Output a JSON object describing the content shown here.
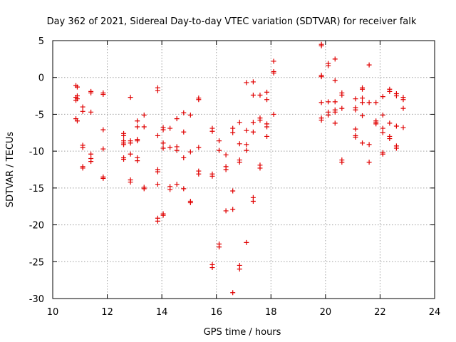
{
  "chart_data": {
    "type": "scatter",
    "title": "Day 362 of 2021, Sidereal Day-to-day VTEC variation (SDTVAR) for receiver falk",
    "xlabel": "GPS time / hours",
    "ylabel": "SDTVAR / TECUs",
    "xlim": [
      10,
      24
    ],
    "ylim": [
      -30,
      5
    ],
    "xticks": [
      10,
      12,
      14,
      16,
      18,
      20,
      22,
      24
    ],
    "yticks": [
      -30,
      -25,
      -20,
      -15,
      -10,
      -5,
      0,
      5
    ],
    "grid": true,
    "marker": "plus",
    "color": "#e00000",
    "series": [
      {
        "name": "SDTVAR",
        "points": [
          [
            10.85,
            -1.1
          ],
          [
            10.9,
            -1.3
          ],
          [
            10.85,
            -2.7
          ],
          [
            10.9,
            -2.9
          ],
          [
            10.85,
            -3.1
          ],
          [
            10.9,
            -2.5
          ],
          [
            10.85,
            -5.6
          ],
          [
            10.9,
            -5.9
          ],
          [
            11.1,
            -4.0
          ],
          [
            11.1,
            -4.6
          ],
          [
            11.1,
            -9.2
          ],
          [
            11.1,
            -9.5
          ],
          [
            11.1,
            -12.1
          ],
          [
            11.1,
            -12.3
          ],
          [
            11.4,
            -1.9
          ],
          [
            11.4,
            -2.1
          ],
          [
            11.4,
            -4.7
          ],
          [
            11.4,
            -10.4
          ],
          [
            11.4,
            -11.0
          ],
          [
            11.4,
            -11.4
          ],
          [
            11.85,
            -2.1
          ],
          [
            11.85,
            -2.3
          ],
          [
            11.85,
            -7.1
          ],
          [
            11.85,
            -9.7
          ],
          [
            11.85,
            -13.5
          ],
          [
            11.85,
            -13.7
          ],
          [
            12.6,
            -7.6
          ],
          [
            12.6,
            -7.9
          ],
          [
            12.6,
            -8.6
          ],
          [
            12.6,
            -8.9
          ],
          [
            12.6,
            -9.1
          ],
          [
            12.6,
            -10.9
          ],
          [
            12.6,
            -11.1
          ],
          [
            12.85,
            -2.7
          ],
          [
            12.85,
            -8.6
          ],
          [
            12.85,
            -8.9
          ],
          [
            12.85,
            -10.4
          ],
          [
            12.85,
            -13.9
          ],
          [
            12.85,
            -14.2
          ],
          [
            13.1,
            -5.9
          ],
          [
            13.1,
            -6.7
          ],
          [
            13.1,
            -8.4
          ],
          [
            13.1,
            -8.6
          ],
          [
            13.1,
            -10.9
          ],
          [
            13.1,
            -11.3
          ],
          [
            13.35,
            -5.1
          ],
          [
            13.35,
            -6.7
          ],
          [
            13.35,
            -14.9
          ],
          [
            13.35,
            -15.1
          ],
          [
            13.85,
            -1.4
          ],
          [
            13.85,
            -1.8
          ],
          [
            13.85,
            -7.9
          ],
          [
            13.85,
            -12.5
          ],
          [
            13.85,
            -12.8
          ],
          [
            13.85,
            -14.5
          ],
          [
            13.85,
            -19.1
          ],
          [
            13.85,
            -19.5
          ],
          [
            14.05,
            -6.8
          ],
          [
            14.05,
            -7.1
          ],
          [
            14.05,
            -8.9
          ],
          [
            14.05,
            -9.6
          ],
          [
            14.05,
            -18.5
          ],
          [
            14.05,
            -18.7
          ],
          [
            14.3,
            -6.9
          ],
          [
            14.3,
            -9.5
          ],
          [
            14.3,
            -14.8
          ],
          [
            14.3,
            -15.2
          ],
          [
            14.55,
            -5.6
          ],
          [
            14.55,
            -9.4
          ],
          [
            14.55,
            -9.9
          ],
          [
            14.55,
            -14.5
          ],
          [
            14.8,
            -4.8
          ],
          [
            14.8,
            -7.4
          ],
          [
            14.8,
            -10.9
          ],
          [
            14.8,
            -15.1
          ],
          [
            15.05,
            -5.1
          ],
          [
            15.05,
            -10.1
          ],
          [
            15.05,
            -16.8
          ],
          [
            15.05,
            -17.0
          ],
          [
            15.35,
            -2.8
          ],
          [
            15.35,
            -3.0
          ],
          [
            15.35,
            -9.5
          ],
          [
            15.35,
            -12.7
          ],
          [
            15.35,
            -13.1
          ],
          [
            15.85,
            -6.9
          ],
          [
            15.85,
            -7.3
          ],
          [
            15.85,
            -13.1
          ],
          [
            15.85,
            -13.4
          ],
          [
            15.85,
            -25.4
          ],
          [
            15.85,
            -25.8
          ],
          [
            16.1,
            -8.6
          ],
          [
            16.1,
            -9.9
          ],
          [
            16.1,
            -22.6
          ],
          [
            16.1,
            -23.0
          ],
          [
            16.35,
            -10.5
          ],
          [
            16.35,
            -12.1
          ],
          [
            16.35,
            -12.5
          ],
          [
            16.35,
            -18.1
          ],
          [
            16.6,
            -6.9
          ],
          [
            16.6,
            -7.5
          ],
          [
            16.6,
            -15.4
          ],
          [
            16.6,
            -17.9
          ],
          [
            16.6,
            -29.2
          ],
          [
            16.85,
            -6.1
          ],
          [
            16.85,
            -9.0
          ],
          [
            16.85,
            -11.2
          ],
          [
            16.85,
            -11.5
          ],
          [
            16.85,
            -25.5
          ],
          [
            16.85,
            -26.0
          ],
          [
            17.1,
            -0.7
          ],
          [
            17.1,
            -7.2
          ],
          [
            17.1,
            -9.1
          ],
          [
            17.1,
            -9.9
          ],
          [
            17.1,
            -22.4
          ],
          [
            17.35,
            -0.6
          ],
          [
            17.35,
            -2.4
          ],
          [
            17.35,
            -6.1
          ],
          [
            17.35,
            -7.4
          ],
          [
            17.35,
            -16.3
          ],
          [
            17.35,
            -16.8
          ],
          [
            17.6,
            -2.4
          ],
          [
            17.6,
            -5.5
          ],
          [
            17.6,
            -5.8
          ],
          [
            17.6,
            -11.9
          ],
          [
            17.6,
            -12.3
          ],
          [
            17.85,
            -2.0
          ],
          [
            17.85,
            -3.0
          ],
          [
            17.85,
            -6.3
          ],
          [
            17.85,
            -6.7
          ],
          [
            17.85,
            -8.0
          ],
          [
            18.1,
            2.2
          ],
          [
            18.1,
            0.8
          ],
          [
            18.1,
            0.6
          ],
          [
            18.1,
            -5.0
          ],
          [
            19.85,
            4.5
          ],
          [
            19.85,
            4.3
          ],
          [
            19.85,
            0.3
          ],
          [
            19.85,
            0.1
          ],
          [
            19.85,
            -3.4
          ],
          [
            19.85,
            -5.5
          ],
          [
            19.85,
            -5.8
          ],
          [
            20.1,
            1.9
          ],
          [
            20.1,
            1.6
          ],
          [
            20.1,
            -3.3
          ],
          [
            20.1,
            -4.7
          ],
          [
            20.1,
            -5.1
          ],
          [
            20.35,
            2.5
          ],
          [
            20.35,
            -0.4
          ],
          [
            20.35,
            -3.3
          ],
          [
            20.35,
            -4.4
          ],
          [
            20.35,
            -4.7
          ],
          [
            20.35,
            -6.2
          ],
          [
            20.6,
            -2.1
          ],
          [
            20.6,
            -2.4
          ],
          [
            20.6,
            -4.2
          ],
          [
            20.6,
            -11.2
          ],
          [
            20.6,
            -11.5
          ],
          [
            21.1,
            -2.9
          ],
          [
            21.1,
            -4.1
          ],
          [
            21.1,
            -4.4
          ],
          [
            21.1,
            -7.0
          ],
          [
            21.1,
            -7.9
          ],
          [
            21.1,
            -8.1
          ],
          [
            21.35,
            -1.4
          ],
          [
            21.35,
            -1.6
          ],
          [
            21.35,
            -2.8
          ],
          [
            21.35,
            -3.4
          ],
          [
            21.35,
            -5.2
          ],
          [
            21.35,
            -8.9
          ],
          [
            21.6,
            1.7
          ],
          [
            21.6,
            -3.4
          ],
          [
            21.6,
            -9.1
          ],
          [
            21.6,
            -11.5
          ],
          [
            21.85,
            -3.4
          ],
          [
            21.85,
            -5.9
          ],
          [
            21.85,
            -6.1
          ],
          [
            21.85,
            -6.3
          ],
          [
            22.1,
            -2.6
          ],
          [
            22.1,
            -5.1
          ],
          [
            22.1,
            -6.9
          ],
          [
            22.1,
            -7.5
          ],
          [
            22.1,
            -10.2
          ],
          [
            22.1,
            -10.4
          ],
          [
            22.35,
            -1.6
          ],
          [
            22.35,
            -1.9
          ],
          [
            22.35,
            -6.2
          ],
          [
            22.35,
            -8.0
          ],
          [
            22.35,
            -8.3
          ],
          [
            22.6,
            -2.2
          ],
          [
            22.6,
            -2.5
          ],
          [
            22.6,
            -6.6
          ],
          [
            22.6,
            -9.3
          ],
          [
            22.6,
            -9.6
          ],
          [
            22.85,
            -2.7
          ],
          [
            22.85,
            -3.0
          ],
          [
            22.85,
            -4.2
          ],
          [
            22.85,
            -6.8
          ]
        ]
      }
    ]
  }
}
